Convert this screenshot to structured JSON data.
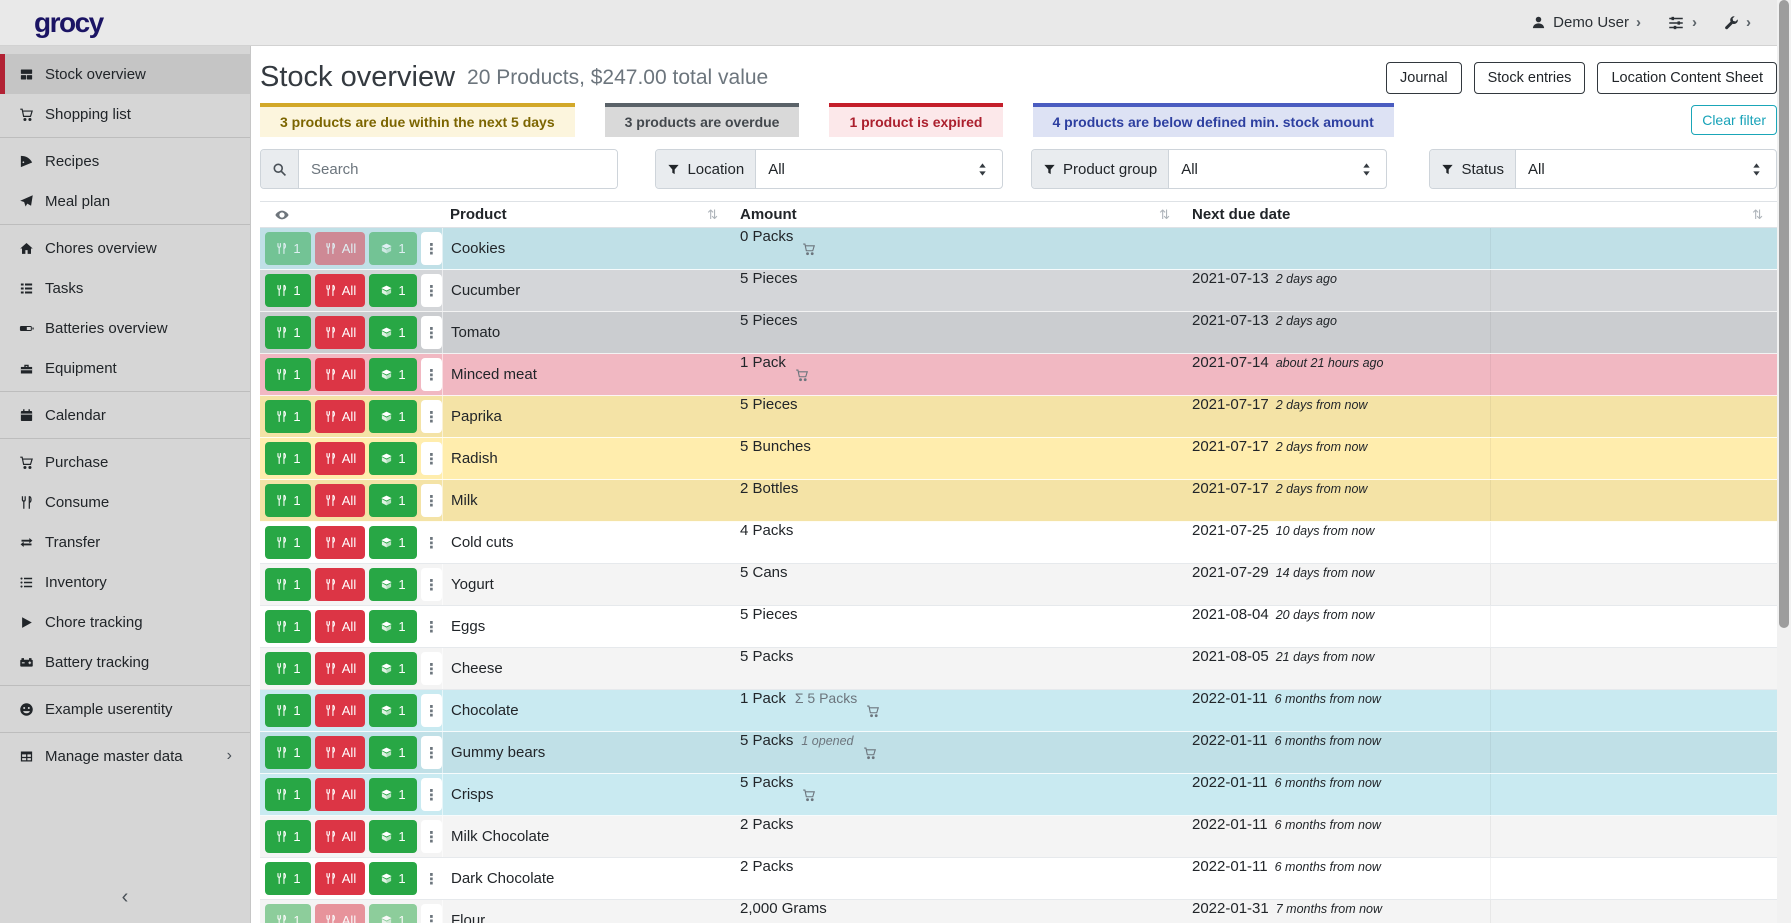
{
  "navbar": {
    "logo": "grocy",
    "user_label": "Demo User",
    "menus": [
      {
        "icon": "user-icon",
        "label": "Demo User"
      },
      {
        "icon": "sliders-icon",
        "label": ""
      },
      {
        "icon": "wrench-icon",
        "label": ""
      }
    ]
  },
  "sidebar": {
    "items": [
      {
        "label": "Stock overview",
        "icon": "boxes",
        "active": true
      },
      {
        "label": "Shopping list",
        "icon": "cart",
        "divider_after": true
      },
      {
        "label": "Recipes",
        "icon": "pizza"
      },
      {
        "label": "Meal plan",
        "icon": "plane",
        "divider_after": true
      },
      {
        "label": "Chores overview",
        "icon": "home"
      },
      {
        "label": "Tasks",
        "icon": "tasks"
      },
      {
        "label": "Batteries overview",
        "icon": "battery"
      },
      {
        "label": "Equipment",
        "icon": "toolbox",
        "divider_after": true
      },
      {
        "label": "Calendar",
        "icon": "calendar",
        "divider_after": true
      },
      {
        "label": "Purchase",
        "icon": "cart"
      },
      {
        "label": "Consume",
        "icon": "utensils"
      },
      {
        "label": "Transfer",
        "icon": "exchange"
      },
      {
        "label": "Inventory",
        "icon": "list"
      },
      {
        "label": "Chore tracking",
        "icon": "play"
      },
      {
        "label": "Battery tracking",
        "icon": "carbattery",
        "divider_after": true
      },
      {
        "label": "Example userentity",
        "icon": "smiley",
        "divider_after": true
      },
      {
        "label": "Manage master data",
        "icon": "table",
        "chevron": true
      }
    ],
    "collapse_icon": "chevron-left"
  },
  "header": {
    "title": "Stock overview",
    "subtitle": "20 Products, $247.00 total value",
    "actions": [
      "Journal",
      "Stock entries",
      "Location Content Sheet"
    ]
  },
  "banners": [
    {
      "text": "3 products are due within the next 5 days",
      "type": "warning"
    },
    {
      "text": "3 products are overdue",
      "type": "secondary"
    },
    {
      "text": "1 product is expired",
      "type": "danger"
    },
    {
      "text": "4 products are below defined min. stock amount",
      "type": "minstock"
    }
  ],
  "clear_filter_label": "Clear filter",
  "filters": {
    "search_placeholder": "Search",
    "groups": [
      {
        "label": "Location",
        "value": "All"
      },
      {
        "label": "Product group",
        "value": "All"
      },
      {
        "label": "Status",
        "value": "All"
      }
    ]
  },
  "table": {
    "columns": [
      {
        "label": "Product"
      },
      {
        "label": "Amount"
      },
      {
        "label": "Next due date"
      }
    ],
    "row_buttons": {
      "consume_one": "1",
      "consume_all": "All",
      "open_one": "1"
    },
    "rows": [
      {
        "product": "Cookies",
        "amount": "0 Packs",
        "cart": true,
        "due": "",
        "due_note": "",
        "color": "info",
        "disabled": true
      },
      {
        "product": "Cucumber",
        "amount": "5 Pieces",
        "cart": false,
        "due": "2021-07-13",
        "due_note": "2 days ago",
        "color": "secondary"
      },
      {
        "product": "Tomato",
        "amount": "5 Pieces",
        "cart": false,
        "due": "2021-07-13",
        "due_note": "2 days ago",
        "color": "secondary"
      },
      {
        "product": "Minced meat",
        "amount": "1 Pack",
        "cart": true,
        "due": "2021-07-14",
        "due_note": "about 21 hours ago",
        "color": "danger"
      },
      {
        "product": "Paprika",
        "amount": "5 Pieces",
        "cart": false,
        "due": "2021-07-17",
        "due_note": "2 days from now",
        "color": "warning"
      },
      {
        "product": "Radish",
        "amount": "5 Bunches",
        "cart": false,
        "due": "2021-07-17",
        "due_note": "2 days from now",
        "color": "warning"
      },
      {
        "product": "Milk",
        "amount": "2 Bottles",
        "cart": false,
        "due": "2021-07-17",
        "due_note": "2 days from now",
        "color": "warning"
      },
      {
        "product": "Cold cuts",
        "amount": "4 Packs",
        "cart": false,
        "due": "2021-07-25",
        "due_note": "10 days from now",
        "color": "none"
      },
      {
        "product": "Yogurt",
        "amount": "5 Cans",
        "cart": false,
        "due": "2021-07-29",
        "due_note": "14 days from now",
        "color": "none"
      },
      {
        "product": "Eggs",
        "amount": "5 Pieces",
        "cart": false,
        "due": "2021-08-04",
        "due_note": "20 days from now",
        "color": "none"
      },
      {
        "product": "Cheese",
        "amount": "5 Packs",
        "cart": false,
        "due": "2021-08-05",
        "due_note": "21 days from now",
        "color": "none"
      },
      {
        "product": "Chocolate",
        "amount": "1 Pack",
        "amount_sum": "Σ 5 Packs",
        "cart": true,
        "due": "2022-01-11",
        "due_note": "6 months from now",
        "color": "info"
      },
      {
        "product": "Gummy bears",
        "amount": "5 Packs",
        "amount_note": "1 opened",
        "cart": true,
        "due": "2022-01-11",
        "due_note": "6 months from now",
        "color": "info"
      },
      {
        "product": "Crisps",
        "amount": "5 Packs",
        "cart": true,
        "due": "2022-01-11",
        "due_note": "6 months from now",
        "color": "info"
      },
      {
        "product": "Milk Chocolate",
        "amount": "2 Packs",
        "cart": false,
        "due": "2022-01-11",
        "due_note": "6 months from now",
        "color": "none"
      },
      {
        "product": "Dark Chocolate",
        "amount": "2 Packs",
        "cart": false,
        "due": "2022-01-11",
        "due_note": "6 months from now",
        "color": "none"
      },
      {
        "product": "Flour",
        "amount": "2,000 Grams",
        "cart": false,
        "due": "2022-01-31",
        "due_note": "7 months from now",
        "color": "none",
        "disabled": true
      }
    ]
  },
  "colors": {
    "logo": "#1b1464",
    "sidebar_accent_red": "#b22234",
    "button_green": "#28a745",
    "button_red": "#dc3545",
    "teal_outline": "#17a2b8",
    "row_info": "#c9eaf1",
    "row_secondary": "#d4d6d9",
    "row_danger": "#f1b8c2",
    "row_warning": "#ffedad"
  }
}
